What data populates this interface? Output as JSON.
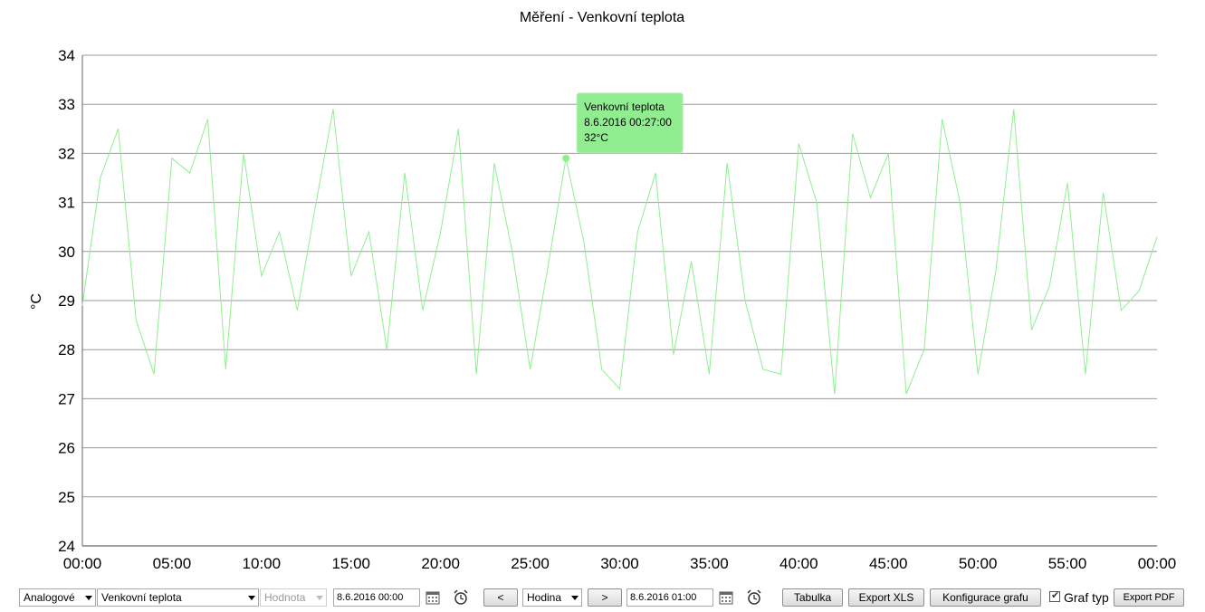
{
  "chart_data": {
    "type": "line",
    "title": "Měření - Venkovní teplota",
    "ylabel": "°C",
    "xlabel": "",
    "ylim": [
      24,
      34
    ],
    "yticks": [
      "24",
      "25",
      "26",
      "27",
      "28",
      "29",
      "30",
      "31",
      "32",
      "33",
      "34"
    ],
    "xlim": [
      0,
      60
    ],
    "xticks": [
      "00:00",
      "05:00",
      "10:00",
      "15:00",
      "20:00",
      "25:00",
      "30:00",
      "35:00",
      "40:00",
      "45:00",
      "50:00",
      "55:00",
      "00:00"
    ],
    "grid": true,
    "series": [
      {
        "color": "#90ee90",
        "x": [
          0,
          1,
          2,
          3,
          4,
          5,
          6,
          7,
          8,
          9,
          10,
          11,
          12,
          13,
          14,
          15,
          16,
          17,
          18,
          19,
          20,
          21,
          22,
          23,
          24,
          25,
          26,
          27,
          28,
          29,
          30,
          31,
          32,
          33,
          34,
          35,
          36,
          37,
          38,
          39,
          40,
          41,
          42,
          43,
          44,
          45,
          46,
          47,
          48,
          49,
          50,
          51,
          52,
          53,
          54,
          55,
          56,
          57,
          58,
          59,
          60
        ],
        "values": [
          28.9,
          31.5,
          32.5,
          28.6,
          27.5,
          31.9,
          31.6,
          32.7,
          27.6,
          32.0,
          29.5,
          30.4,
          28.8,
          30.9,
          32.9,
          29.5,
          30.4,
          28.0,
          31.6,
          28.8,
          30.4,
          32.5,
          27.5,
          31.8,
          30.0,
          27.6,
          29.7,
          31.9,
          30.2,
          27.6,
          27.2,
          30.4,
          31.6,
          27.9,
          29.8,
          27.5,
          31.8,
          29.0,
          27.6,
          27.5,
          32.2,
          31.0,
          27.1,
          32.4,
          31.1,
          32.0,
          27.1,
          28.0,
          32.7,
          31.0,
          27.5,
          29.6,
          32.9,
          28.4,
          29.3,
          31.4,
          27.5,
          31.2,
          28.8,
          29.2,
          30.3
        ]
      }
    ],
    "tooltip": {
      "series": "Venkovní teplota",
      "time": "8.6.2016 00:27:00",
      "value": "32°C",
      "x": 27,
      "y": 31.9,
      "color": "#90ee90"
    }
  },
  "toolbar": {
    "mode_select": "Analogové",
    "channel_select": "Venkovní teplota",
    "value_select": "Hodnota",
    "date_from": "8.6.2016 00:00",
    "prev_label": "<",
    "interval_select": "Hodina",
    "next_label": ">",
    "date_to": "8.6.2016 01:00",
    "table_label": "Tabulka",
    "export_xls_label": "Export XLS",
    "config_label": "Konfigurace grafu",
    "graph_type_label": "Graf typ",
    "export_pdf_label": "Export PDF"
  }
}
